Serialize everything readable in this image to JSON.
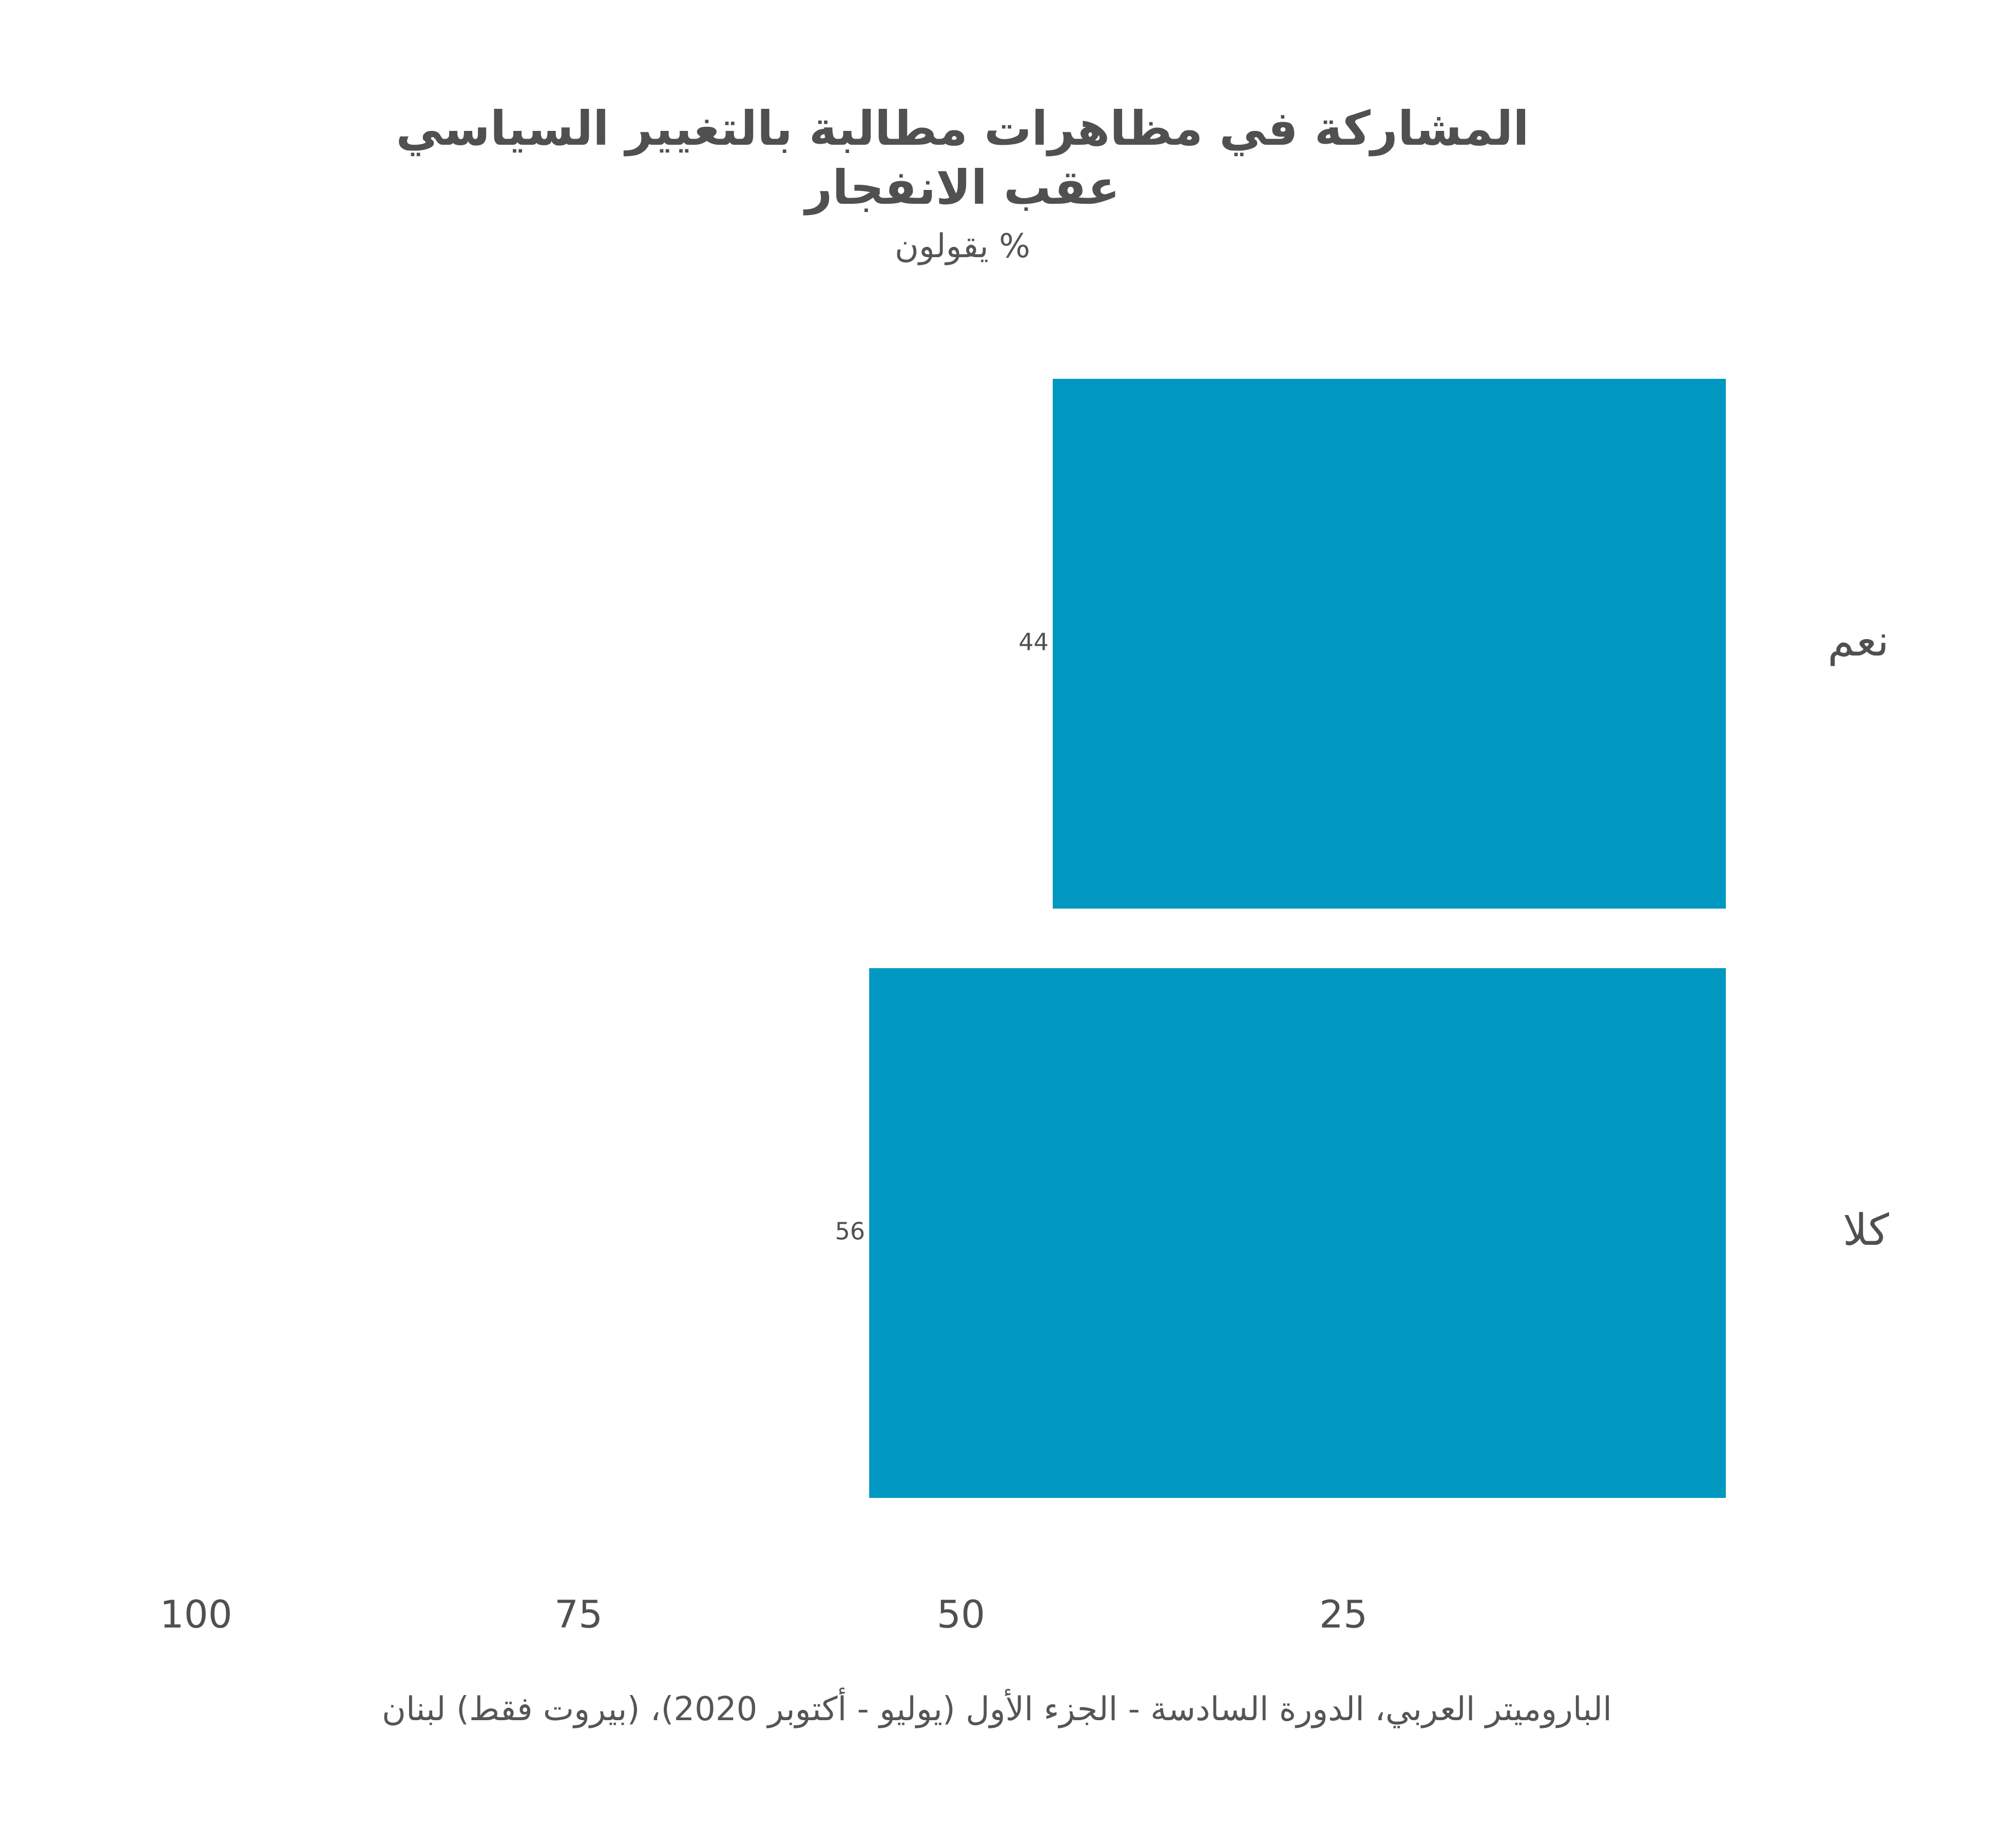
{
  "title_lines": [
    "المشاركة في مظاهرات مطالبة بالتغيير السياسي",
    "عقب الانفجار"
  ],
  "subtitle": "% يقولون",
  "caption": "الباروميتر العربي، الدورة السادسة - الجزء الأول (يوليو - أكتوبر 2020)، (بيروت فقط) لبنان",
  "colors": {
    "bar": "#0098c0",
    "text": "#505050"
  },
  "chart_data": {
    "type": "bar",
    "orientation": "horizontal",
    "axis_direction": "right-to-left",
    "title": "المشاركة في مظاهرات مطالبة بالتغيير السياسي عقب الانفجار",
    "subtitle": "% يقولون",
    "categories": [
      "نعم",
      "كلا"
    ],
    "values": [
      44,
      56
    ],
    "data_labels": [
      "44",
      "56"
    ],
    "xlim": [
      0,
      100
    ],
    "x_ticks": [
      25,
      50,
      75,
      100
    ],
    "x_tick_labels": [
      "25",
      "50",
      "75",
      "100"
    ],
    "grid": false,
    "legend": "none"
  }
}
